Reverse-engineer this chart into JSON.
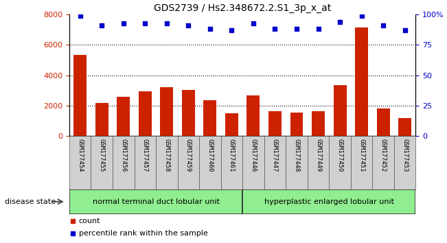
{
  "title": "GDS2739 / Hs2.348672.2.S1_3p_x_at",
  "categories": [
    "GSM177454",
    "GSM177455",
    "GSM177456",
    "GSM177457",
    "GSM177458",
    "GSM177459",
    "GSM177460",
    "GSM177461",
    "GSM177446",
    "GSM177447",
    "GSM177448",
    "GSM177449",
    "GSM177450",
    "GSM177451",
    "GSM177452",
    "GSM177453"
  ],
  "counts": [
    5350,
    2200,
    2580,
    2970,
    3220,
    3020,
    2380,
    1500,
    2660,
    1620,
    1530,
    1640,
    3350,
    7150,
    1800,
    1200
  ],
  "percentiles": [
    99,
    91,
    93,
    93,
    93,
    91,
    88,
    87,
    93,
    88,
    88,
    88,
    94,
    99,
    91,
    87
  ],
  "bar_color": "#cc2200",
  "dot_color": "#0000cc",
  "group1_label": "normal terminal duct lobular unit",
  "group2_label": "hyperplastic enlarged lobular unit",
  "group1_count": 8,
  "group2_count": 8,
  "group1_color": "#90ee90",
  "group2_color": "#90ee90",
  "disease_state_label": "disease state",
  "ylim_left": [
    0,
    8000
  ],
  "ylim_right": [
    0,
    100
  ],
  "yticks_left": [
    0,
    2000,
    4000,
    6000,
    8000
  ],
  "yticks_right": [
    0,
    25,
    50,
    75,
    100
  ],
  "legend_count_label": "count",
  "legend_pct_label": "percentile rank within the sample",
  "cell_color": "#d0d0d0"
}
